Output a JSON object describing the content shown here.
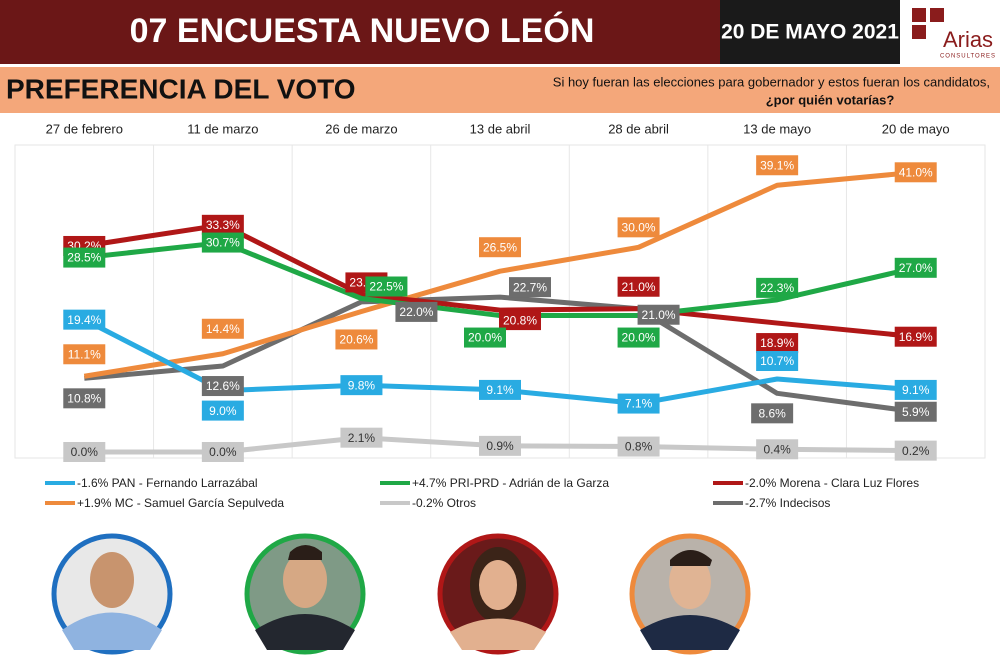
{
  "header": {
    "title": "07 ENCUESTA NUEVO LEÓN",
    "date": "20 DE MAYO 2021",
    "logo": "Arias",
    "logo_sub": "CONSULTORES"
  },
  "section": {
    "title": "PREFERENCIA DEL VOTO",
    "question_1": "Si hoy fueran las elecciones para gobernador y estos fueran los candidatos,",
    "question_2": "¿por quién votarías?"
  },
  "chart_data": {
    "type": "line",
    "categories": [
      "27 de febrero",
      "11 de marzo",
      "26 de marzo",
      "13 de abril",
      "28 de abril",
      "13 de mayo",
      "20 de mayo"
    ],
    "ylim": [
      0,
      45
    ],
    "grid": true,
    "series": [
      {
        "name": "-1.6% PAN - Fernando Larrazábal",
        "color": "#29abe2",
        "values": [
          19.4,
          9.0,
          9.8,
          9.1,
          7.1,
          10.7,
          9.1
        ],
        "value_labels": [
          "19.4%",
          "9.0%",
          "9.8%",
          "9.1%",
          "7.1%",
          "10.7%",
          "9.1%"
        ]
      },
      {
        "name": "+4.7% PRI-PRD - Adrián de la Garza",
        "color": "#1fa846",
        "values": [
          28.5,
          30.7,
          22.5,
          20.0,
          20.0,
          22.3,
          27.0
        ],
        "value_labels": [
          "28.5%",
          "30.7%",
          "22.5%",
          "20.0%",
          "20.0%",
          "22.3%",
          "27.0%"
        ]
      },
      {
        "name": "-2.0% Morena - Clara Luz Flores",
        "color": "#b01717",
        "values": [
          30.2,
          33.3,
          23.1,
          20.8,
          21.0,
          18.9,
          16.9
        ],
        "value_labels": [
          "30.2%",
          "33.3%",
          "23.1%",
          "20.8%",
          "21.0%",
          "18.9%",
          "16.9%"
        ]
      },
      {
        "name": "+1.9% MC - Samuel García Sepulveda",
        "color": "#ee8a3c",
        "values": [
          11.1,
          14.4,
          20.6,
          26.5,
          30.0,
          39.1,
          41.0
        ],
        "value_labels": [
          "11.1%",
          "14.4%",
          "20.6%",
          "26.5%",
          "30.0%",
          "39.1%",
          "41.0%"
        ]
      },
      {
        "name": "-0.2% Otros",
        "color": "#c8c8c8",
        "values": [
          0.0,
          0.0,
          2.1,
          0.9,
          0.8,
          0.4,
          0.2
        ],
        "value_labels": [
          "0.0%",
          "0.0%",
          "2.1%",
          "0.9%",
          "0.8%",
          "0.4%",
          "0.2%"
        ]
      },
      {
        "name": "-2.7% Indecisos",
        "color": "#6d6d6d",
        "values": [
          10.8,
          12.6,
          22.0,
          22.7,
          21.0,
          8.6,
          5.9
        ],
        "value_labels": [
          "10.8%",
          "12.6%",
          "22.0%",
          "22.7%",
          "21.0%",
          "8.6%",
          "5.9%"
        ]
      }
    ]
  }
}
